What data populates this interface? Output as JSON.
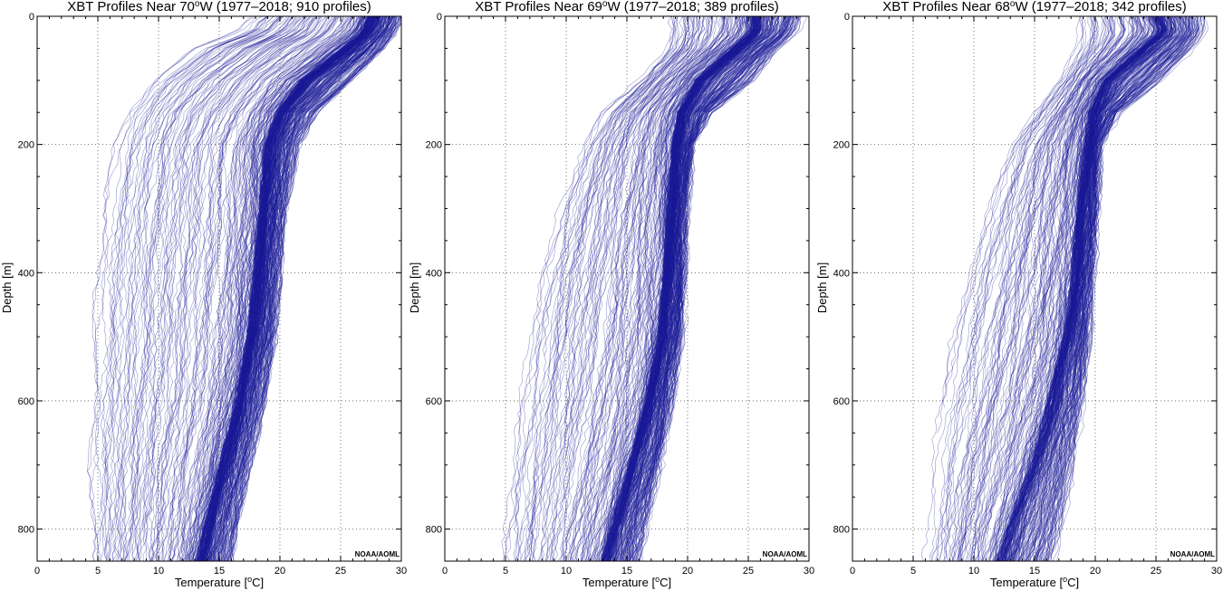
{
  "chart_data": [
    {
      "type": "line",
      "title_prefix": "XBT Profiles Near 70",
      "title_degree": "o",
      "title_suffix": "W (1977–2018;  910 profiles)",
      "xlabel_prefix": "Temperature [",
      "xlabel_degree": "o",
      "xlabel_suffix": "C]",
      "ylabel": "Depth [m]",
      "xlim": [
        0,
        30
      ],
      "ylim": [
        850,
        0
      ],
      "x_ticks": [
        "0",
        "5",
        "10",
        "15",
        "20",
        "25",
        "30"
      ],
      "y_ticks": [
        "0",
        "200",
        "400",
        "600",
        "800"
      ],
      "grid": true,
      "credit": "NOAA/AOML",
      "line_color": "#1a1a96",
      "series_count": 910,
      "envelope": {
        "depth": [
          0,
          25,
          50,
          100,
          150,
          200,
          300,
          400,
          500,
          600,
          700,
          800,
          850
        ],
        "core_temp": [
          27.5,
          27.0,
          25.5,
          22.0,
          20.0,
          19.0,
          18.6,
          18.1,
          17.6,
          16.6,
          15.3,
          14.0,
          13.4
        ],
        "min_temp": [
          18.0,
          16.5,
          13.0,
          9.5,
          7.5,
          6.5,
          5.5,
          5.0,
          4.8,
          4.6,
          4.5,
          4.5,
          4.5
        ],
        "max_temp": [
          30.0,
          29.5,
          28.5,
          26.0,
          23.0,
          21.5,
          20.5,
          20.0,
          19.6,
          18.8,
          17.5,
          16.5,
          16.0
        ]
      }
    },
    {
      "type": "line",
      "title_prefix": "XBT Profiles Near 69",
      "title_degree": "o",
      "title_suffix": "W (1977–2018;  389 profiles)",
      "xlabel_prefix": "Temperature [",
      "xlabel_degree": "o",
      "xlabel_suffix": "C]",
      "ylabel": "Depth [m]",
      "xlim": [
        0,
        30
      ],
      "ylim": [
        850,
        0
      ],
      "x_ticks": [
        "0",
        "5",
        "10",
        "15",
        "20",
        "25",
        "30"
      ],
      "y_ticks": [
        "0",
        "200",
        "400",
        "600",
        "800"
      ],
      "grid": true,
      "credit": "NOAA/AOML",
      "line_color": "#1a1a96",
      "series_count": 389,
      "envelope": {
        "depth": [
          0,
          25,
          50,
          100,
          150,
          200,
          300,
          400,
          500,
          600,
          700,
          800,
          850
        ],
        "core_temp": [
          25.5,
          25.5,
          24.0,
          21.0,
          19.5,
          19.0,
          18.6,
          18.3,
          17.8,
          16.8,
          15.4,
          13.9,
          13.2
        ],
        "min_temp": [
          18.5,
          18.5,
          18.3,
          16.0,
          13.0,
          11.5,
          9.5,
          8.0,
          7.0,
          6.2,
          5.6,
          5.0,
          4.8
        ],
        "max_temp": [
          29.5,
          29.0,
          27.5,
          25.5,
          22.0,
          20.5,
          20.0,
          19.8,
          19.6,
          18.8,
          17.8,
          16.6,
          16.0
        ]
      }
    },
    {
      "type": "line",
      "title_prefix": "XBT Profiles Near 68",
      "title_degree": "o",
      "title_suffix": "W (1977–2018;  342 profiles)",
      "xlabel_prefix": "Temperature [",
      "xlabel_degree": "o",
      "xlabel_suffix": "C]",
      "ylabel": "Depth [m]",
      "xlim": [
        0,
        30
      ],
      "ylim": [
        850,
        0
      ],
      "x_ticks": [
        "0",
        "5",
        "10",
        "15",
        "20",
        "25",
        "30"
      ],
      "y_ticks": [
        "0",
        "200",
        "400",
        "600",
        "800"
      ],
      "grid": true,
      "credit": "NOAA/AOML",
      "line_color": "#1a1a96",
      "series_count": 342,
      "envelope": {
        "depth": [
          0,
          25,
          50,
          100,
          150,
          200,
          300,
          400,
          500,
          600,
          700,
          800,
          850
        ],
        "core_temp": [
          25.0,
          25.5,
          24.0,
          21.0,
          19.8,
          19.3,
          18.8,
          18.3,
          17.6,
          16.4,
          14.8,
          13.0,
          12.2
        ],
        "min_temp": [
          18.5,
          18.5,
          18.3,
          17.0,
          15.0,
          13.0,
          11.0,
          9.5,
          8.0,
          7.0,
          6.2,
          5.8,
          5.6
        ],
        "max_temp": [
          29.0,
          29.0,
          28.0,
          25.5,
          22.0,
          20.5,
          20.2,
          19.9,
          19.6,
          19.0,
          18.2,
          17.2,
          16.5
        ]
      }
    }
  ]
}
